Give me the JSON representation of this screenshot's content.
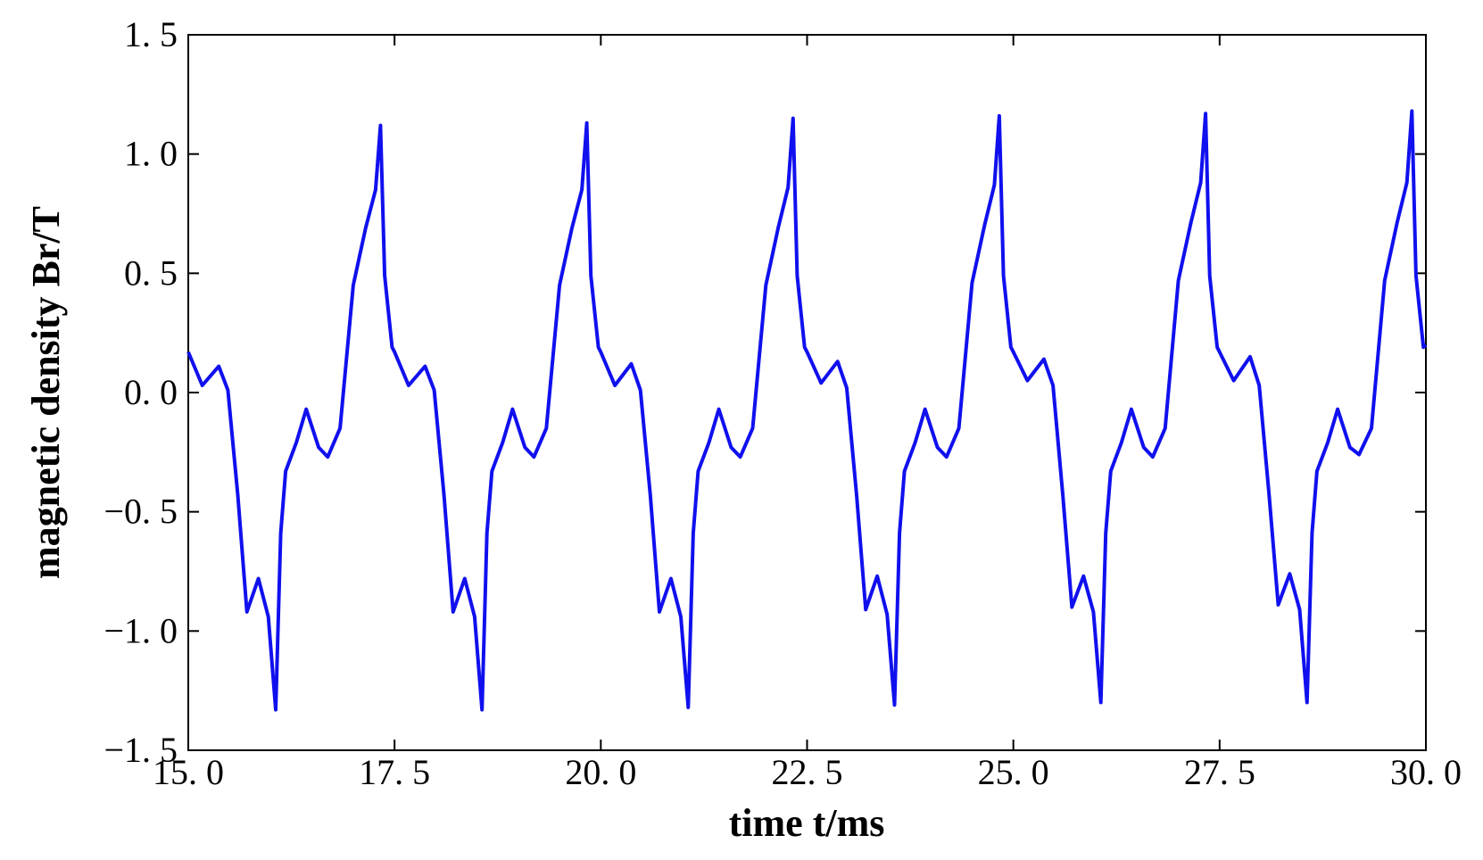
{
  "chart_data": {
    "type": "line",
    "xlabel": "time t/ms",
    "ylabel": "magnetic density Br/T",
    "xlim": [
      15,
      30
    ],
    "ylim": [
      -1.5,
      1.5
    ],
    "xticks": [
      {
        "value": 15,
        "label": "15. 0"
      },
      {
        "value": 17.5,
        "label": "17. 5"
      },
      {
        "value": 20,
        "label": "20. 0"
      },
      {
        "value": 22.5,
        "label": "22. 5"
      },
      {
        "value": 25,
        "label": "25. 0"
      },
      {
        "value": 27.5,
        "label": "27. 5"
      },
      {
        "value": 30,
        "label": "30. 0"
      }
    ],
    "yticks": [
      {
        "value": -1.5,
        "label": "−1. 5"
      },
      {
        "value": -1,
        "label": "−1. 0"
      },
      {
        "value": -0.5,
        "label": "−0. 5"
      },
      {
        "value": 0,
        "label": "0. 0"
      },
      {
        "value": 0.5,
        "label": "0. 5"
      },
      {
        "value": 1,
        "label": "1. 0"
      },
      {
        "value": 1.5,
        "label": "1. 5"
      }
    ],
    "x": [
      15,
      15.17,
      15.37,
      15.48,
      15.6,
      15.71,
      15.85,
      15.97,
      16.06,
      16.12,
      16.18,
      16.31,
      16.43,
      16.58,
      16.69,
      16.84,
      17,
      17.15,
      17.27,
      17.33,
      17.38,
      17.47,
      17.5,
      17.67,
      17.87,
      17.98,
      18.1,
      18.21,
      18.35,
      18.47,
      18.56,
      18.62,
      18.68,
      18.81,
      18.93,
      19.08,
      19.19,
      19.34,
      19.5,
      19.65,
      19.77,
      19.83,
      19.88,
      19.97,
      20,
      20.17,
      20.37,
      20.48,
      20.6,
      20.71,
      20.85,
      20.97,
      21.06,
      21.12,
      21.18,
      21.31,
      21.43,
      21.58,
      21.69,
      21.84,
      22,
      22.15,
      22.27,
      22.33,
      22.38,
      22.47,
      22.5,
      22.67,
      22.87,
      22.98,
      23.1,
      23.21,
      23.35,
      23.47,
      23.56,
      23.62,
      23.68,
      23.81,
      23.93,
      24.08,
      24.19,
      24.34,
      24.5,
      24.65,
      24.77,
      24.83,
      24.88,
      24.97,
      25,
      25.17,
      25.37,
      25.48,
      25.6,
      25.71,
      25.85,
      25.97,
      26.06,
      26.12,
      26.18,
      26.31,
      26.43,
      26.58,
      26.69,
      26.84,
      27,
      27.15,
      27.27,
      27.33,
      27.38,
      27.47,
      27.5,
      27.67,
      27.87,
      27.98,
      28.1,
      28.21,
      28.35,
      28.47,
      28.56,
      28.62,
      28.68,
      28.81,
      28.93,
      29.08,
      29.19,
      29.34,
      29.5,
      29.65,
      29.77,
      29.83,
      29.88,
      29.97,
      30
    ],
    "series": [
      {
        "color": "#1010ee",
        "values": [
          0.17,
          0.03,
          0.11,
          0.01,
          -0.43,
          -0.92,
          -0.78,
          -0.94,
          -1.33,
          -0.59,
          -0.33,
          -0.21,
          -0.07,
          -0.23,
          -0.27,
          -0.15,
          0.45,
          0.69,
          0.85,
          1.12,
          0.49,
          0.19,
          0.17,
          0.03,
          0.11,
          0.01,
          -0.43,
          -0.92,
          -0.78,
          -0.94,
          -1.33,
          -0.59,
          -0.33,
          -0.21,
          -0.07,
          -0.23,
          -0.27,
          -0.15,
          0.45,
          0.69,
          0.85,
          1.13,
          0.49,
          0.19,
          0.17,
          0.03,
          0.12,
          0.01,
          -0.43,
          -0.92,
          -0.78,
          -0.94,
          -1.32,
          -0.59,
          -0.33,
          -0.21,
          -0.07,
          -0.23,
          -0.27,
          -0.15,
          0.45,
          0.69,
          0.86,
          1.15,
          0.49,
          0.19,
          0.17,
          0.04,
          0.13,
          0.02,
          -0.43,
          -0.91,
          -0.77,
          -0.93,
          -1.31,
          -0.59,
          -0.33,
          -0.21,
          -0.07,
          -0.23,
          -0.27,
          -0.15,
          0.46,
          0.7,
          0.87,
          1.16,
          0.49,
          0.19,
          0.17,
          0.05,
          0.14,
          0.03,
          -0.43,
          -0.9,
          -0.77,
          -0.92,
          -1.3,
          -0.59,
          -0.33,
          -0.21,
          -0.07,
          -0.23,
          -0.27,
          -0.15,
          0.47,
          0.71,
          0.88,
          1.17,
          0.49,
          0.19,
          0.17,
          0.05,
          0.15,
          0.03,
          -0.43,
          -0.89,
          -0.76,
          -0.91,
          -1.3,
          -0.59,
          -0.33,
          -0.21,
          -0.07,
          -0.23,
          -0.26,
          -0.15,
          0.47,
          0.71,
          0.88,
          1.18,
          0.49,
          0.19,
          0.2
        ]
      }
    ]
  }
}
